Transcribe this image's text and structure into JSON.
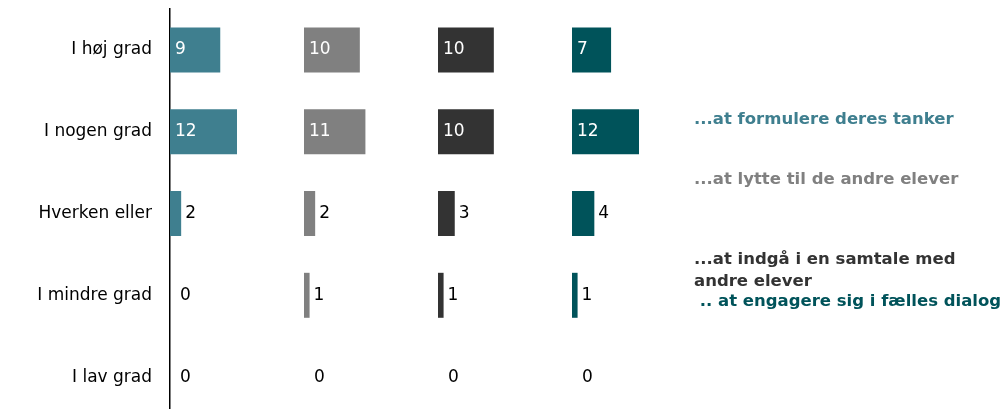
{
  "chart_data": [
    {
      "type": "bar",
      "orientation": "horizontal",
      "categories": [
        "I høj grad",
        "I nogen grad",
        "Hverken eller",
        "I mindre grad",
        "I lav grad"
      ],
      "tick_labels": "y",
      "legend": "right",
      "data_labels": true,
      "series": [
        {
          "name": "...at formulere deres tanker",
          "color": "#3f7f8f",
          "values": [
            9,
            12,
            2,
            0,
            0
          ]
        }
      ]
    },
    {
      "type": "bar",
      "orientation": "horizontal",
      "categories": [
        null,
        null,
        null,
        null,
        null
      ],
      "tick_labels": false,
      "legend": "right",
      "data_labels": true,
      "series": [
        {
          "name": "...at lytte til de andre elever",
          "color": "#808080",
          "values": [
            10,
            11,
            2,
            1,
            0
          ]
        }
      ]
    },
    {
      "type": "bar",
      "orientation": "horizontal",
      "categories": [
        null,
        null,
        null,
        null,
        null
      ],
      "tick_labels": false,
      "legend": "right",
      "data_labels": true,
      "series": [
        {
          "name": "...at indgå i en samtale med andre elever",
          "color": "#333333",
          "values": [
            10,
            10,
            3,
            1,
            0
          ]
        }
      ]
    },
    {
      "type": "bar",
      "orientation": "horizontal",
      "categories": [
        null,
        null,
        null,
        null,
        null
      ],
      "tick_labels": false,
      "legend": "right",
      "data_labels": true,
      "series": [
        {
          "name": " .. at engagere sig i fælles dialog",
          "color": "#00535a",
          "values": [
            7,
            12,
            4,
            1,
            0
          ]
        }
      ]
    }
  ]
}
